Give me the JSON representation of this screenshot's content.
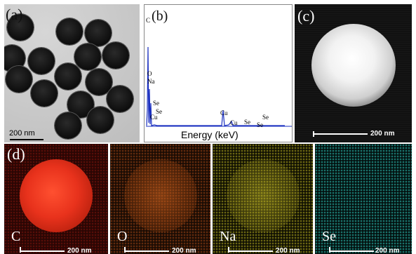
{
  "panels": {
    "a": {
      "label": "(a)",
      "scale_bar": "200 nm"
    },
    "b": {
      "label": "(b)",
      "x_axis_label": "Energy (keV)",
      "peaks": [
        "C",
        "O",
        "Na",
        "Se",
        "Se",
        "Cu",
        "Cu",
        "Cu",
        "Se",
        "Se",
        "Se"
      ]
    },
    "c": {
      "label": "(c)",
      "scale_bar": "200 nm"
    },
    "d": {
      "label": "(d)"
    }
  },
  "maps": [
    {
      "element": "C",
      "scale_bar": "200 nm",
      "color": "#e8321c"
    },
    {
      "element": "O",
      "scale_bar": "200 nm",
      "color": "#c8641c"
    },
    {
      "element": "Na",
      "scale_bar": "200 nm",
      "color": "#c8c030"
    },
    {
      "element": "Se",
      "scale_bar": "200 nm",
      "color": "#30c8b8"
    }
  ]
}
